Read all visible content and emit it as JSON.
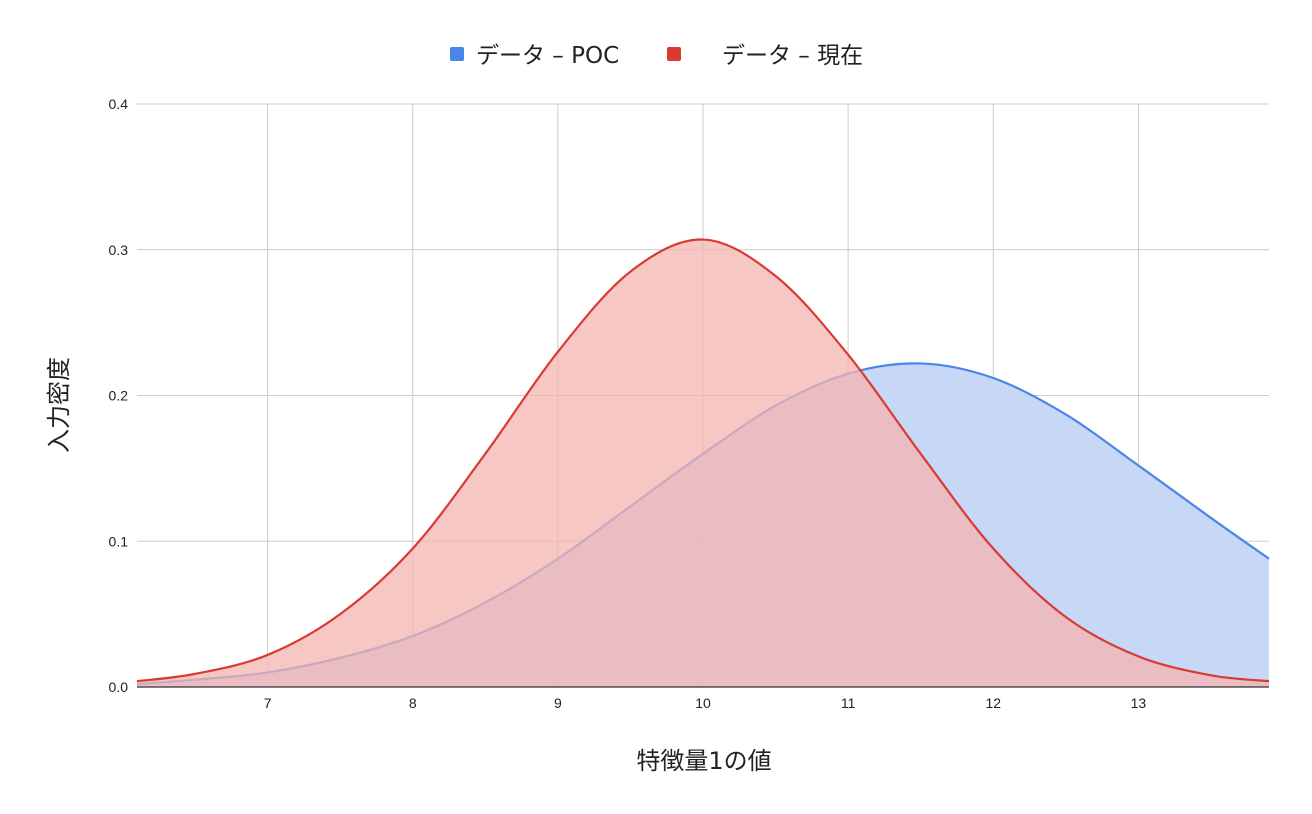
{
  "chart_data": {
    "type": "area",
    "title": "",
    "xlabel": "特徴量1の値",
    "ylabel": "入力密度",
    "xlim": [
      6.1,
      13.9
    ],
    "ylim": [
      0,
      0.4
    ],
    "x_ticks": [
      "7",
      "8",
      "9",
      "10",
      "11",
      "12",
      "13"
    ],
    "y_ticks": [
      "0.0",
      "0.1",
      "0.2",
      "0.3",
      "0.4"
    ],
    "grid": true,
    "legend_position": "top-center",
    "series": [
      {
        "name": "データ – POC",
        "color": "#4a86e8",
        "fill": "#c3d6f6",
        "x": [
          6.1,
          6.5,
          7.0,
          7.5,
          8.0,
          8.5,
          9.0,
          9.5,
          10.0,
          10.5,
          11.0,
          11.5,
          12.0,
          12.5,
          13.0,
          13.5,
          13.9
        ],
        "y": [
          0.002,
          0.005,
          0.01,
          0.02,
          0.035,
          0.058,
          0.088,
          0.124,
          0.16,
          0.193,
          0.215,
          0.222,
          0.212,
          0.187,
          0.152,
          0.116,
          0.088
        ]
      },
      {
        "name": "データ – 現在",
        "color": "#d93a32",
        "fill": "#f4b4b0",
        "x": [
          6.1,
          6.5,
          7.0,
          7.5,
          8.0,
          8.5,
          9.0,
          9.5,
          10.0,
          10.5,
          11.0,
          11.5,
          12.0,
          12.5,
          13.0,
          13.5,
          13.9
        ],
        "y": [
          0.004,
          0.009,
          0.022,
          0.05,
          0.095,
          0.16,
          0.23,
          0.285,
          0.307,
          0.282,
          0.228,
          0.16,
          0.095,
          0.048,
          0.021,
          0.008,
          0.004
        ]
      }
    ]
  }
}
